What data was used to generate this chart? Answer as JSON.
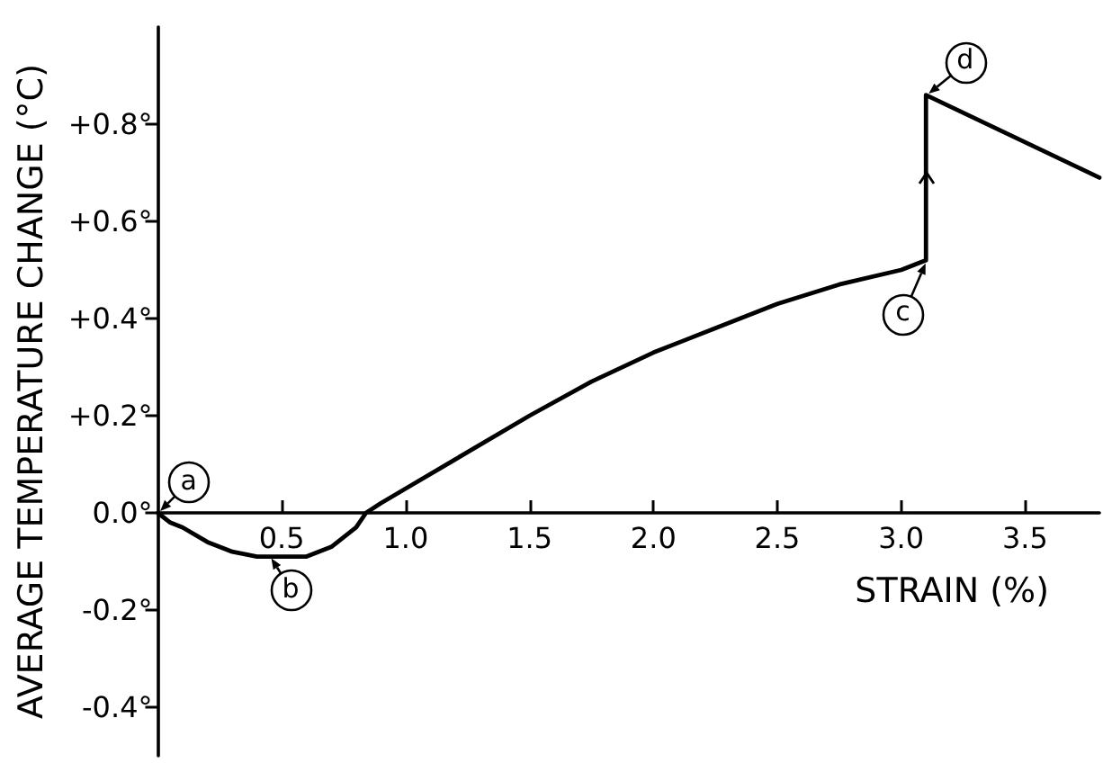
{
  "chart_data": {
    "type": "line",
    "xlabel": "STRAIN (%)",
    "ylabel": "AVERAGE TEMPERATURE CHANGE (°C)",
    "x": [
      0,
      0.05,
      0.1,
      0.2,
      0.3,
      0.4,
      0.5,
      0.6,
      0.7,
      0.8,
      0.84,
      0.9,
      1.0,
      1.2,
      1.5,
      1.75,
      2.0,
      2.25,
      2.5,
      2.75,
      3.0,
      3.1,
      3.1,
      3.8
    ],
    "values": [
      0,
      -0.02,
      -0.03,
      -0.06,
      -0.08,
      -0.09,
      -0.09,
      -0.09,
      -0.07,
      -0.03,
      0,
      0.02,
      0.05,
      0.11,
      0.2,
      0.27,
      0.33,
      0.38,
      0.43,
      0.47,
      0.5,
      0.52,
      0.86,
      0.69
    ],
    "color": "#000000",
    "xlim": [
      0,
      3.8
    ],
    "ylim": [
      -0.5,
      1.0
    ],
    "xticks": [
      0.5,
      {
        "value": 1,
        "label": "1.0"
      },
      1.5,
      {
        "value": 2,
        "label": "2.0"
      },
      2.5,
      {
        "value": 3,
        "label": "3.0"
      },
      3.5
    ],
    "yticks": [
      {
        "value": -0.4,
        "label": "-0.4°"
      },
      {
        "value": -0.2,
        "label": "-0.2°"
      },
      {
        "value": 0,
        "label": "0.0°"
      },
      {
        "value": 0.2,
        "label": "+0.2°"
      },
      {
        "value": 0.4,
        "label": "+0.4°"
      },
      {
        "value": 0.6,
        "label": "+0.6°"
      },
      {
        "value": 0.8,
        "label": "+0.8°"
      }
    ],
    "grid": false,
    "marker": "none",
    "line_style": "solid",
    "annotations": [
      {
        "text": "a",
        "x": 0,
        "y": 0
      },
      {
        "text": "b",
        "x": 0.45,
        "y": -0.09
      },
      {
        "text": "c",
        "x": 3.1,
        "y": 0.52
      },
      {
        "text": "d",
        "x": 3.1,
        "y": 0.86
      }
    ]
  }
}
